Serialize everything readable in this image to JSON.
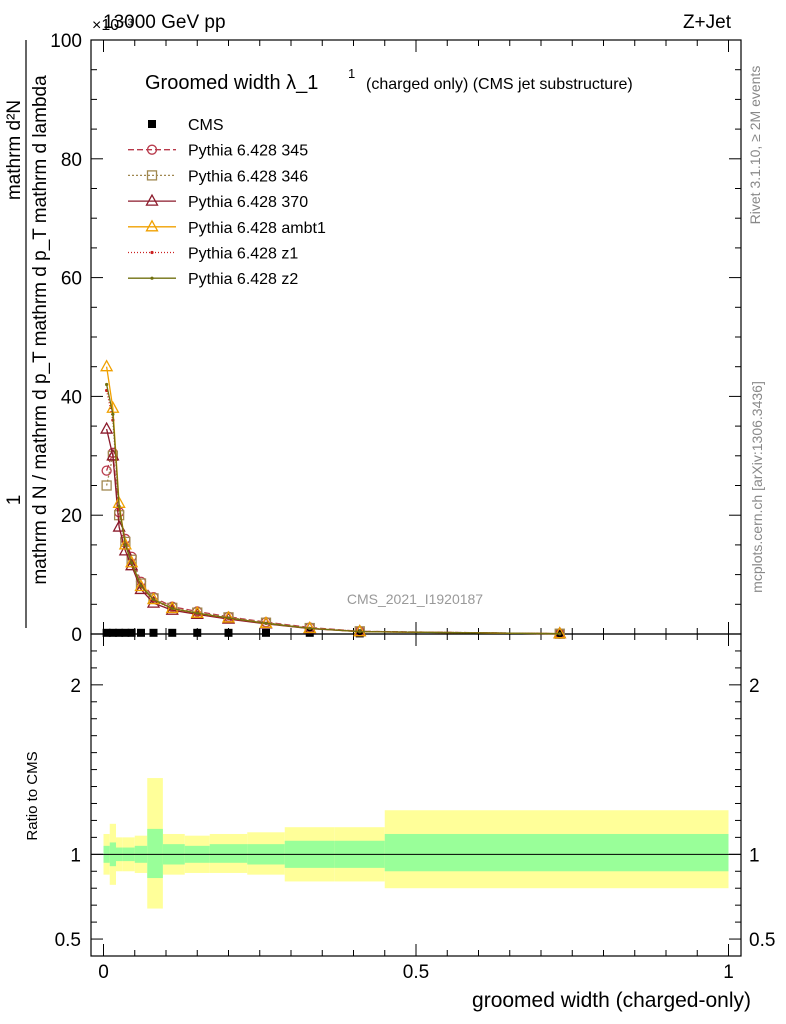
{
  "header": {
    "left": "13000 GeV pp",
    "right": "Z+Jet",
    "exponent": "×10⁻³"
  },
  "side_labels": {
    "rivet": "Rivet 3.1.10, ≥ 2M events",
    "mcplots": "mcplots.cern.ch [arXiv:1306.3436]"
  },
  "watermark": "CMS_2021_I1920187",
  "legend": {
    "title_main": "Groomed width λ_1",
    "title_sup": "1",
    "title_rest": "(charged only) (CMS jet substructure)",
    "entries": [
      "CMS",
      "Pythia 6.428 345",
      "Pythia 6.428 346",
      "Pythia 6.428 370",
      "Pythia 6.428 ambt1",
      "Pythia 6.428 z1",
      "Pythia 6.428 z2"
    ]
  },
  "axes": {
    "ylabel_main_numerator": "1",
    "ylabel_main_denominator": "mathrm d N / mathrm d p_T mathrm d p_T mathrm d lambda",
    "ylabel_main_numerator2": "mathrm d²N",
    "ylabel_ratio": "Ratio to CMS",
    "xlabel": "groomed width (charged-only)"
  },
  "chart_data": {
    "type": "line",
    "xlim": [
      -0.02,
      1.02
    ],
    "main": {
      "ylim": [
        0,
        100
      ],
      "yticks": [
        0,
        20,
        40,
        60,
        80,
        100
      ],
      "scale": "×10⁻³",
      "grid": false,
      "legend_position": "top-left",
      "series": [
        {
          "name": "CMS",
          "color": "#000000",
          "marker": "filled-square",
          "x": [
            0.005,
            0.015,
            0.025,
            0.035,
            0.045,
            0.06,
            0.08,
            0.11,
            0.15,
            0.2,
            0.26,
            0.33,
            0.41,
            0.73
          ],
          "y": [
            0.2,
            0.2,
            0.2,
            0.2,
            0.2,
            0.2,
            0.2,
            0.2,
            0.2,
            0.2,
            0.2,
            0.2,
            0.1,
            0.05
          ]
        },
        {
          "name": "Pythia 6.428 345",
          "color": "#b83a4b",
          "marker": "open-circle",
          "dash": "6,3",
          "x": [
            0.005,
            0.015,
            0.025,
            0.035,
            0.045,
            0.06,
            0.08,
            0.11,
            0.15,
            0.2,
            0.26,
            0.33,
            0.41,
            0.73
          ],
          "y": [
            27.5,
            30.5,
            20.5,
            16,
            13,
            8.8,
            6.2,
            4.6,
            3.8,
            2.9,
            2.0,
            1.1,
            0.45,
            0.05
          ]
        },
        {
          "name": "Pythia 6.428 346",
          "color": "#a08850",
          "marker": "open-square",
          "dash": "2,2",
          "x": [
            0.005,
            0.015,
            0.025,
            0.035,
            0.045,
            0.06,
            0.08,
            0.11,
            0.15,
            0.2,
            0.26,
            0.33,
            0.41,
            0.73
          ],
          "y": [
            25,
            30,
            20,
            15.5,
            12.5,
            8.5,
            6.0,
            4.4,
            3.6,
            2.8,
            1.9,
            1.0,
            0.45,
            0.05
          ]
        },
        {
          "name": "Pythia 6.428 370",
          "color": "#8b1a2b",
          "marker": "open-triangle",
          "dash": "",
          "x": [
            0.005,
            0.015,
            0.025,
            0.035,
            0.045,
            0.06,
            0.08,
            0.11,
            0.15,
            0.2,
            0.26,
            0.33,
            0.41,
            0.73
          ],
          "y": [
            34.5,
            30,
            18,
            14,
            11.5,
            7.5,
            5.2,
            4.0,
            3.3,
            2.5,
            1.7,
            0.9,
            0.4,
            0.05
          ]
        },
        {
          "name": "Pythia 6.428 ambt1",
          "color": "#f0a000",
          "marker": "open-triangle",
          "dash": "",
          "x": [
            0.005,
            0.015,
            0.025,
            0.035,
            0.045,
            0.06,
            0.08,
            0.11,
            0.15,
            0.2,
            0.26,
            0.33,
            0.41,
            0.73
          ],
          "y": [
            45,
            38,
            22,
            15,
            12,
            8.0,
            5.8,
            4.3,
            3.5,
            2.7,
            1.8,
            0.95,
            0.4,
            0.05
          ]
        },
        {
          "name": "Pythia 6.428 z1",
          "color": "#cc2020",
          "marker": "small-dot",
          "dash": "1,2",
          "x": [
            0.005,
            0.015,
            0.025,
            0.035,
            0.045,
            0.06,
            0.08,
            0.11,
            0.15,
            0.2,
            0.26,
            0.33,
            0.41,
            0.73
          ],
          "y": [
            41,
            36,
            21,
            15,
            12,
            8.0,
            5.7,
            4.2,
            3.4,
            2.6,
            1.8,
            0.95,
            0.4,
            0.05
          ]
        },
        {
          "name": "Pythia 6.428 z2",
          "color": "#707010",
          "marker": "small-dot",
          "dash": "",
          "x": [
            0.005,
            0.015,
            0.025,
            0.035,
            0.045,
            0.06,
            0.08,
            0.11,
            0.15,
            0.2,
            0.26,
            0.33,
            0.41,
            0.73
          ],
          "y": [
            42,
            37,
            21.5,
            15,
            12,
            8.1,
            5.8,
            4.3,
            3.5,
            2.7,
            1.8,
            0.95,
            0.4,
            0.05
          ]
        }
      ]
    },
    "ratio": {
      "ylim": [
        0.4,
        2.3
      ],
      "yticks": [
        0.5,
        1,
        2
      ],
      "ytick_labels": [
        "0.5",
        "1",
        "2"
      ],
      "xticks": [
        0,
        0.5,
        1
      ],
      "xtick_labels": [
        "0",
        "0.5",
        "1"
      ],
      "stat_color": "#99ff99",
      "total_color": "#ffff99",
      "bands": [
        {
          "x0": 0.0,
          "x1": 0.01,
          "stat": [
            0.95,
            1.05
          ],
          "total": [
            0.88,
            1.12
          ]
        },
        {
          "x0": 0.01,
          "x1": 0.02,
          "stat": [
            0.93,
            1.07
          ],
          "total": [
            0.82,
            1.18
          ]
        },
        {
          "x0": 0.02,
          "x1": 0.03,
          "stat": [
            0.96,
            1.04
          ],
          "total": [
            0.9,
            1.1
          ]
        },
        {
          "x0": 0.03,
          "x1": 0.04,
          "stat": [
            0.96,
            1.04
          ],
          "total": [
            0.9,
            1.1
          ]
        },
        {
          "x0": 0.04,
          "x1": 0.05,
          "stat": [
            0.96,
            1.04
          ],
          "total": [
            0.9,
            1.1
          ]
        },
        {
          "x0": 0.05,
          "x1": 0.07,
          "stat": [
            0.95,
            1.05
          ],
          "total": [
            0.89,
            1.11
          ]
        },
        {
          "x0": 0.07,
          "x1": 0.095,
          "stat": [
            0.86,
            1.15
          ],
          "total": [
            0.68,
            1.45
          ]
        },
        {
          "x0": 0.095,
          "x1": 0.13,
          "stat": [
            0.94,
            1.06
          ],
          "total": [
            0.88,
            1.12
          ]
        },
        {
          "x0": 0.13,
          "x1": 0.17,
          "stat": [
            0.95,
            1.05
          ],
          "total": [
            0.89,
            1.11
          ]
        },
        {
          "x0": 0.17,
          "x1": 0.23,
          "stat": [
            0.95,
            1.06
          ],
          "total": [
            0.89,
            1.12
          ]
        },
        {
          "x0": 0.23,
          "x1": 0.29,
          "stat": [
            0.94,
            1.06
          ],
          "total": [
            0.88,
            1.13
          ]
        },
        {
          "x0": 0.29,
          "x1": 0.37,
          "stat": [
            0.92,
            1.08
          ],
          "total": [
            0.84,
            1.16
          ]
        },
        {
          "x0": 0.37,
          "x1": 0.45,
          "stat": [
            0.92,
            1.08
          ],
          "total": [
            0.84,
            1.16
          ]
        },
        {
          "x0": 0.45,
          "x1": 1.0,
          "stat": [
            0.9,
            1.12
          ],
          "total": [
            0.8,
            1.26
          ]
        }
      ]
    }
  }
}
